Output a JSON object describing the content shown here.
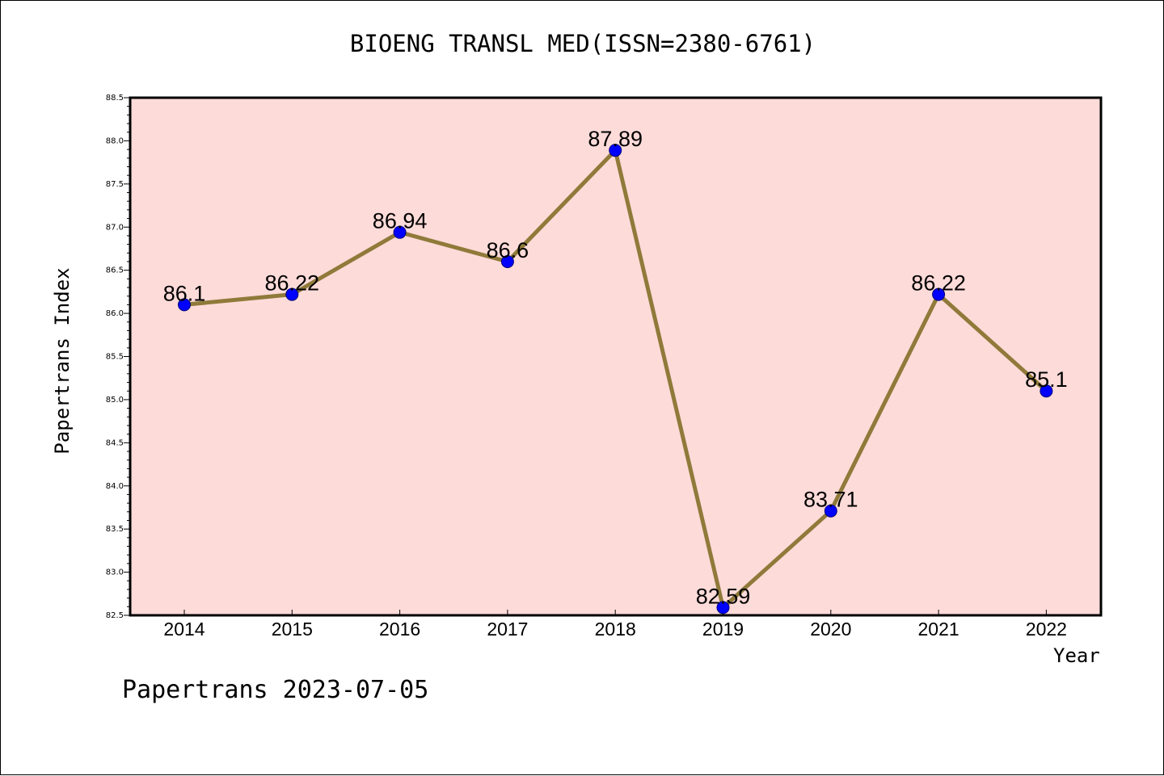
{
  "chart_data": {
    "type": "line",
    "title": "BIOENG TRANSL MED(ISSN=2380-6761)",
    "xlabel": "Year",
    "ylabel": "Papertrans Index",
    "footer": "Papertrans 2023-07-05",
    "categories": [
      "2014",
      "2015",
      "2016",
      "2017",
      "2018",
      "2019",
      "2020",
      "2021",
      "2022"
    ],
    "series": [
      {
        "values": [
          86.1,
          86.22,
          86.94,
          86.6,
          87.89,
          82.59,
          83.71,
          86.22,
          85.1
        ],
        "data_labels": [
          "86.1",
          "86.22",
          "86.94",
          "86.6",
          "87.89",
          "82.59",
          "83.71",
          "86.22",
          "85.1"
        ]
      }
    ],
    "ylim": [
      82.5,
      88.5
    ],
    "y_ticks": [
      "82.5",
      "83.0",
      "83.5",
      "84.0",
      "84.5",
      "85.0",
      "85.5",
      "86.0",
      "86.5",
      "87.0",
      "87.5",
      "88.0",
      "88.5"
    ],
    "grid": false,
    "legend": "none",
    "colors": {
      "plot_background": "#fddbd9",
      "line": "#8f7a3a",
      "marker": "#0000ff",
      "axes": "#000000"
    }
  }
}
